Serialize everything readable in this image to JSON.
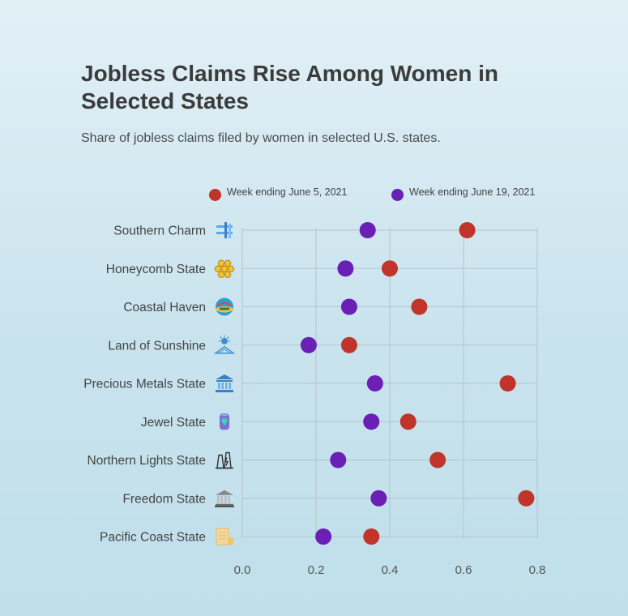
{
  "title": "Jobless Claims Rise Among Women in Selected States",
  "subtitle": "Share of jobless claims filed by women in selected U.S. states.",
  "colors": {
    "series_a": "#c0342a",
    "series_b": "#6a1fb5",
    "grid": "#b5c3c9"
  },
  "chart_data": {
    "type": "scatter",
    "title": "Jobless Claims Rise Among Women in Selected States",
    "subtitle": "Share of jobless claims filed by women in selected U.S. states.",
    "categories": [
      "Southern Charm",
      "Honeycomb State",
      "Coastal Haven",
      "Land of Sunshine",
      "Precious Metals State",
      "Jewel State",
      "Northern Lights State",
      "Freedom State",
      "Pacific Coast State"
    ],
    "category_icons": [
      "bridge-icon",
      "honeycomb-icon",
      "beach-icon",
      "sun-icon",
      "bank-icon",
      "gem-icon",
      "power-plant-icon",
      "monument-icon",
      "map-icon"
    ],
    "series": [
      {
        "name": "Week ending June 5, 2021",
        "color": "#c0342a",
        "values": [
          0.61,
          0.4,
          0.48,
          0.29,
          0.72,
          0.45,
          0.53,
          0.77,
          0.35
        ]
      },
      {
        "name": "Week ending June 19, 2021",
        "color": "#6a1fb5",
        "values": [
          0.34,
          0.28,
          0.29,
          0.18,
          0.36,
          0.35,
          0.26,
          0.37,
          0.22
        ]
      }
    ],
    "xlim": [
      0,
      0.8
    ],
    "xticks": [
      "0.0",
      "0.2",
      "0.4",
      "0.6",
      "0.8"
    ],
    "grid": true,
    "legend_position": "top"
  }
}
